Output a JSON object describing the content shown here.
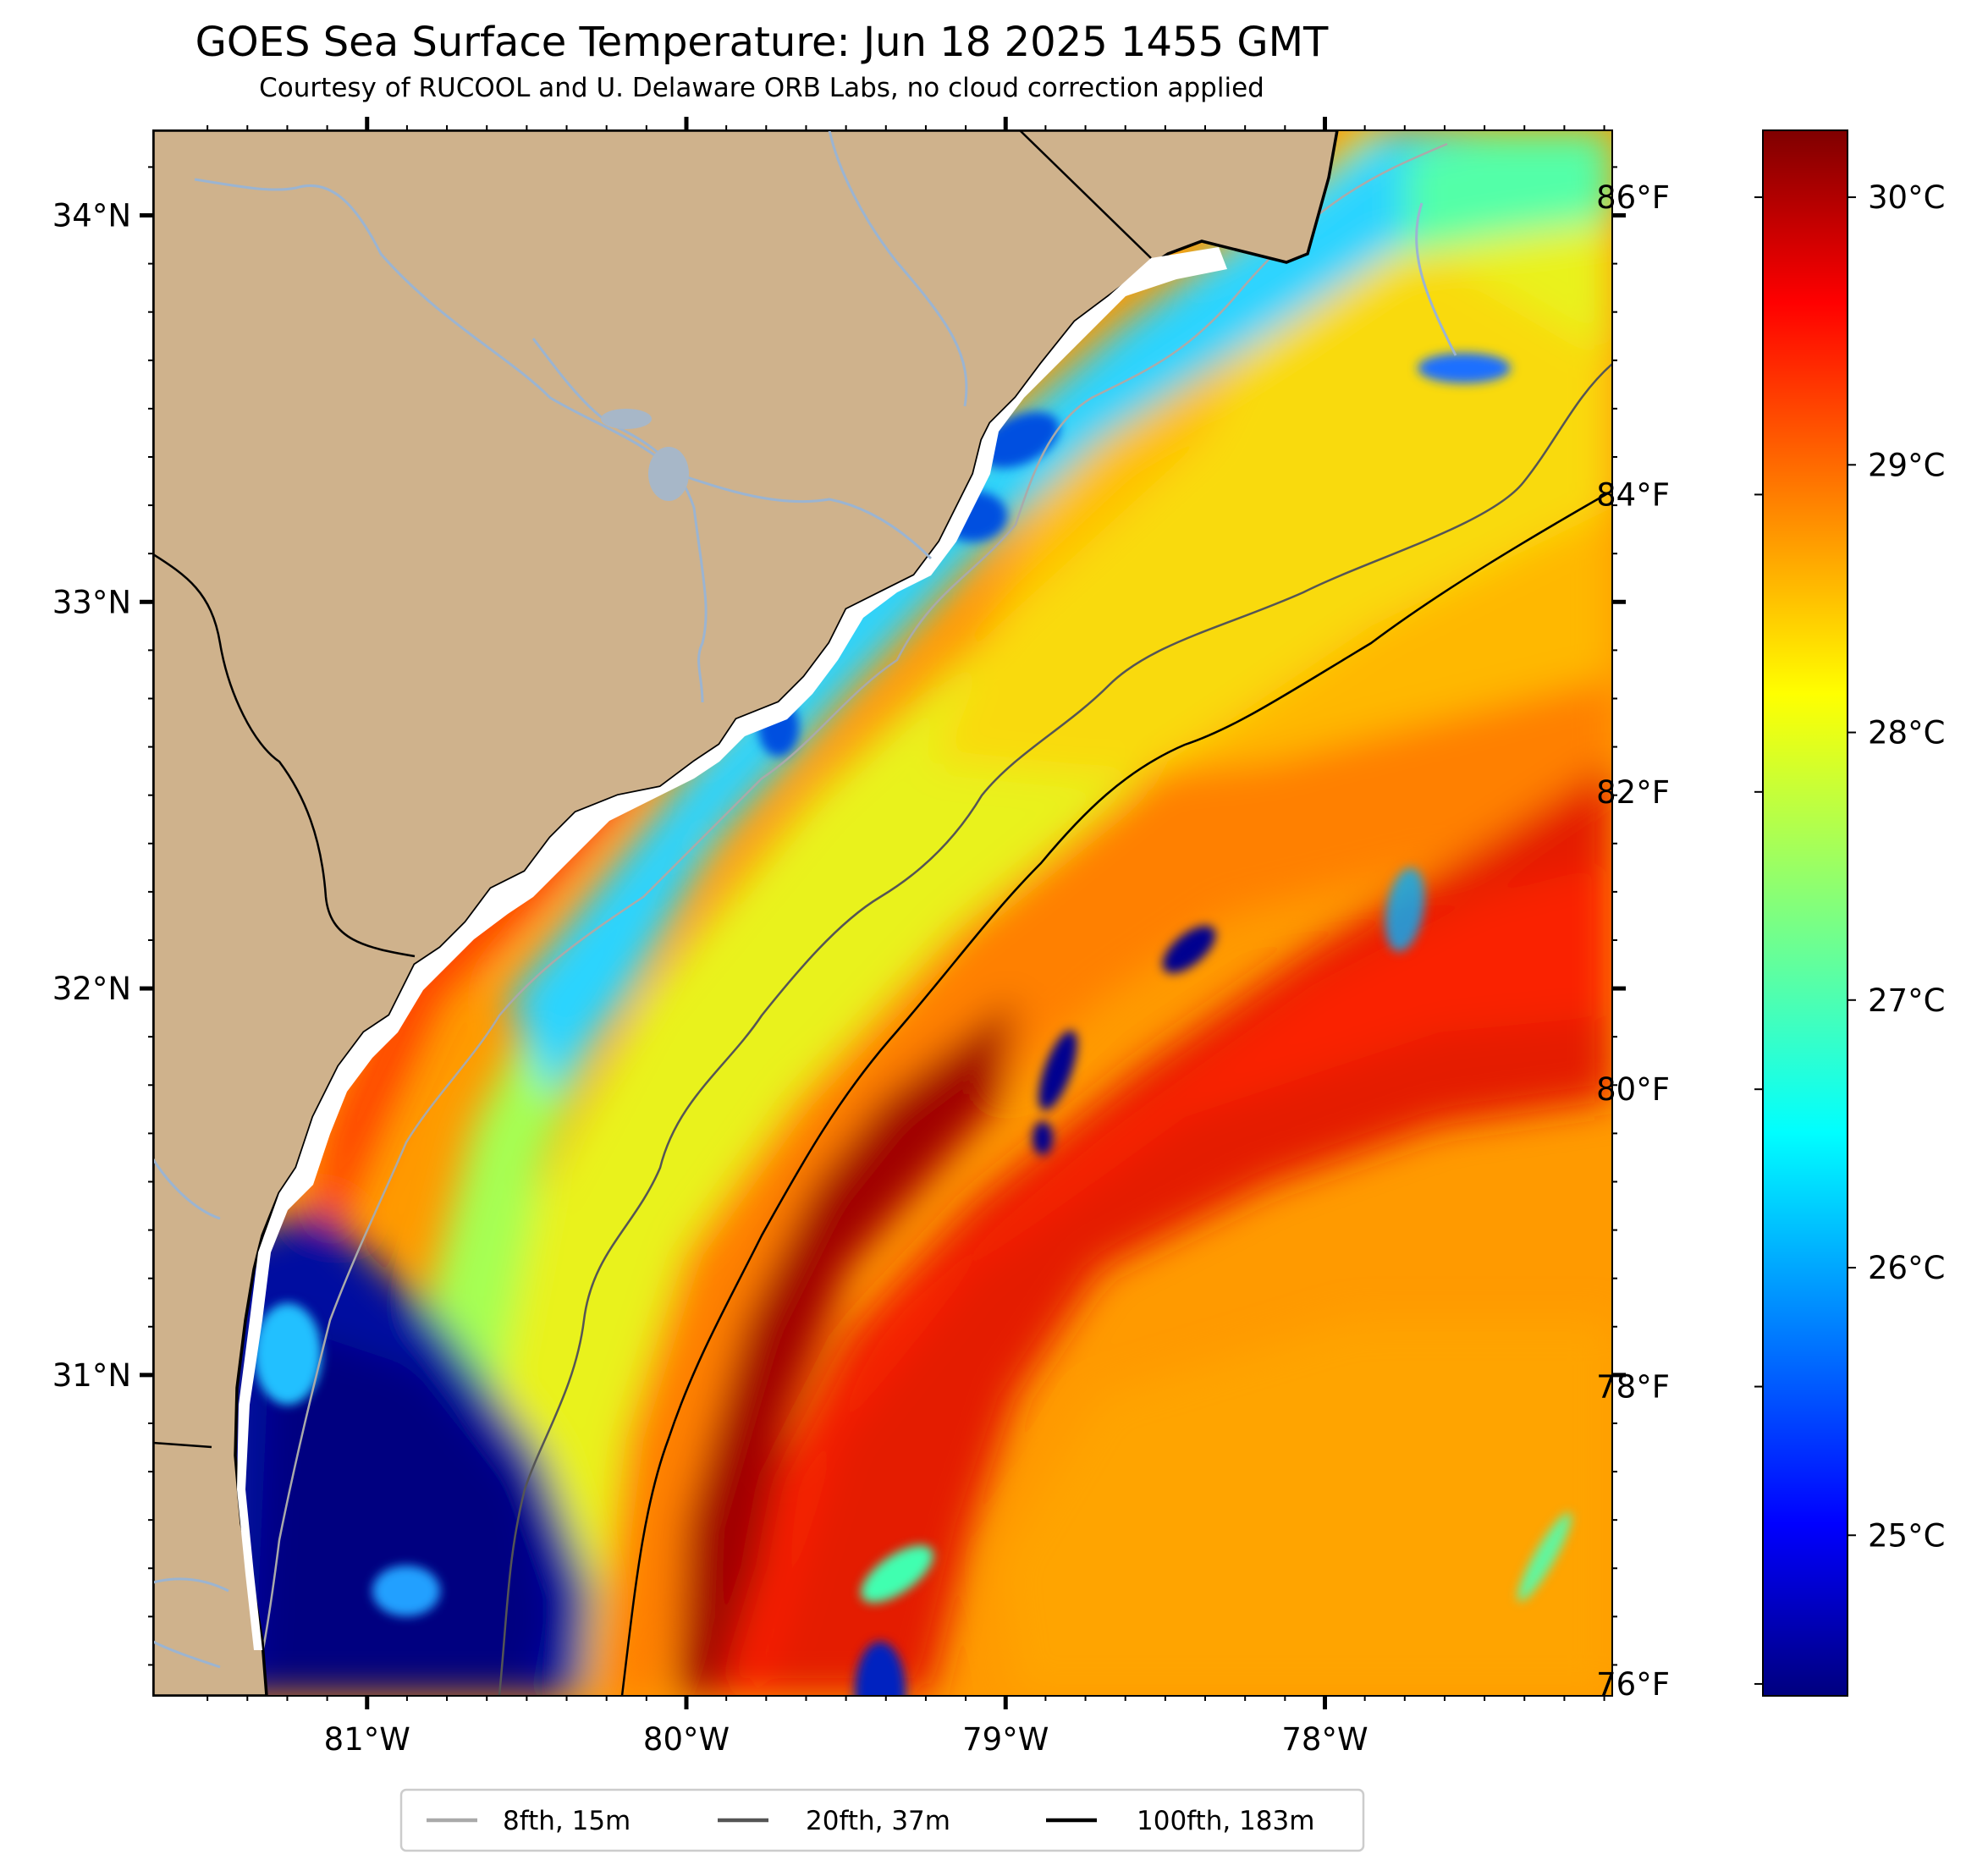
{
  "title": "GOES Sea Surface Temperature: Jun 18 2025 1455 GMT",
  "subtitle": "Courtesy of RUCOOL and U. Delaware ORB Labs, no cloud correction applied",
  "map": {
    "lon_range": [
      -81.67,
      -77.1
    ],
    "lat_range": [
      30.17,
      34.22
    ],
    "projection": "Plate Carree",
    "land_color": "#cfb28c",
    "coastline_color": "#000000",
    "river_color": "#9bb4d1"
  },
  "axes": {
    "lon_ticks": [
      {
        "value": -81,
        "label": "81°W"
      },
      {
        "value": -80,
        "label": "80°W"
      },
      {
        "value": -79,
        "label": "79°W"
      },
      {
        "value": -78,
        "label": "78°W"
      }
    ],
    "lat_ticks": [
      {
        "value": 34,
        "label": "34°N"
      },
      {
        "value": 33,
        "label": "33°N"
      },
      {
        "value": 32,
        "label": "32°N"
      },
      {
        "value": 31,
        "label": "31°N"
      }
    ],
    "right_f_ticks": [
      {
        "value": 86,
        "label": "86°F"
      },
      {
        "value": 84,
        "label": "84°F"
      },
      {
        "value": 82,
        "label": "82°F"
      },
      {
        "value": 80,
        "label": "80°F"
      },
      {
        "value": 78,
        "label": "78°F"
      },
      {
        "value": 76,
        "label": "76°F"
      }
    ]
  },
  "colorbar": {
    "colormap": "jet",
    "range_c": [
      24.4,
      30.25
    ],
    "ticks": [
      {
        "value": 30,
        "label": "30°C"
      },
      {
        "value": 29,
        "label": "29°C"
      },
      {
        "value": 28,
        "label": "28°C"
      },
      {
        "value": 27,
        "label": "27°C"
      },
      {
        "value": 26,
        "label": "26°C"
      },
      {
        "value": 25,
        "label": "25°C"
      }
    ]
  },
  "legend": {
    "position": "bottom-center",
    "items": [
      {
        "label": "8fth, 15m",
        "color": "#aaaaaa"
      },
      {
        "label": "20fth, 37m",
        "color": "#555555"
      },
      {
        "label": "100fth, 183m",
        "color": "#000000"
      }
    ]
  }
}
